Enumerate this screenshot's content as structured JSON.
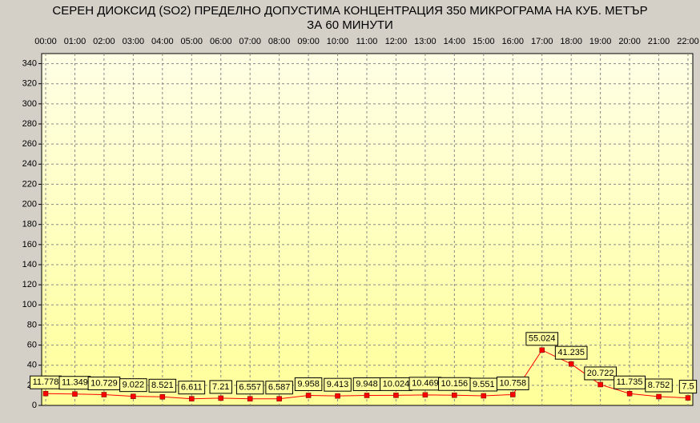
{
  "chart_data": {
    "type": "line",
    "title": "СЕРЕН ДИОКСИД  (SO2)  ПРЕДЕЛНО ДОПУСТИМА КОНЦЕНТРАЦИЯ 350 МИКРОГРАМА  НА КУБ. МЕТЪР",
    "subtitle": "ЗА 60 МИНУТИ",
    "categories": [
      "00:00",
      "01:00",
      "02:00",
      "03:00",
      "04:00",
      "05:00",
      "06:00",
      "07:00",
      "08:00",
      "09:00",
      "10:00",
      "11:00",
      "12:00",
      "13:00",
      "14:00",
      "15:00",
      "16:00",
      "17:00",
      "18:00",
      "19:00",
      "20:00",
      "21:00",
      "22:00"
    ],
    "series": [
      {
        "color": "#ff0000",
        "values": [
          11.778,
          11.349,
          10.729,
          9.022,
          8.521,
          6.611,
          7.21,
          6.557,
          6.587,
          9.958,
          9.413,
          9.948,
          10.024,
          10.469,
          10.156,
          9.551,
          10.758,
          55.024,
          41.235,
          20.722,
          11.735,
          8.752,
          7.5
        ]
      }
    ],
    "ylim": [
      0,
      350
    ],
    "yticks": [
      0,
      20,
      40,
      60,
      80,
      100,
      120,
      140,
      160,
      180,
      200,
      220,
      240,
      260,
      280,
      300,
      320,
      340
    ],
    "grid": true
  }
}
